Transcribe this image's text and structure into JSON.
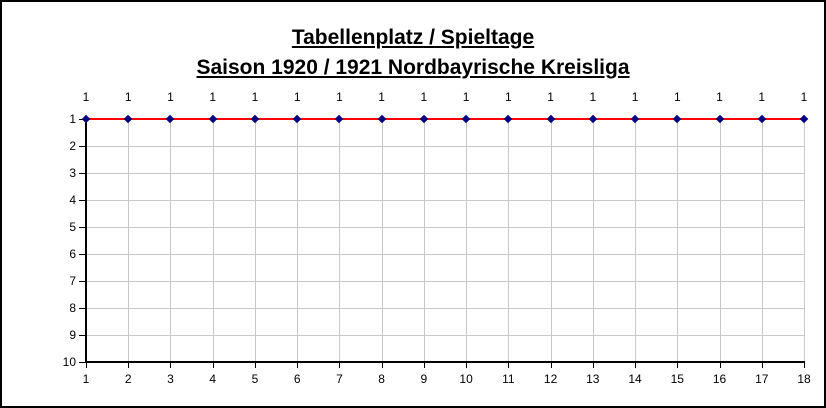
{
  "title": {
    "line1": "Tabellenplatz / Spieltage",
    "line2": "Saison 1920 / 1921 Nordbayrische Kreisliga"
  },
  "chart_data": {
    "type": "line",
    "title": "Tabellenplatz / Spieltage",
    "subtitle": "Saison 1920 / 1921 Nordbayrische Kreisliga",
    "x": [
      1,
      2,
      3,
      4,
      5,
      6,
      7,
      8,
      9,
      10,
      11,
      12,
      13,
      14,
      15,
      16,
      17,
      18
    ],
    "values": [
      1,
      1,
      1,
      1,
      1,
      1,
      1,
      1,
      1,
      1,
      1,
      1,
      1,
      1,
      1,
      1,
      1,
      1
    ],
    "data_labels": [
      "1",
      "1",
      "1",
      "1",
      "1",
      "1",
      "1",
      "1",
      "1",
      "1",
      "1",
      "1",
      "1",
      "1",
      "1",
      "1",
      "1",
      "1"
    ],
    "xticks": [
      "1",
      "2",
      "3",
      "4",
      "5",
      "6",
      "7",
      "8",
      "9",
      "10",
      "11",
      "12",
      "13",
      "14",
      "15",
      "16",
      "17",
      "18"
    ],
    "yticks": [
      "1",
      "2",
      "3",
      "4",
      "5",
      "6",
      "7",
      "8",
      "9",
      "10"
    ],
    "xlabel": "",
    "ylabel": "",
    "xlim": [
      1,
      18
    ],
    "ylim": [
      1,
      10
    ],
    "y_axis_inverted": true,
    "grid": true,
    "legend": "none",
    "colors": {
      "line": "#ff0000",
      "marker": "#000080",
      "gridline": "#c8c8c8",
      "axis": "#000000",
      "text": "#000000",
      "background": "#ffffff",
      "frame_border": "#000000"
    }
  }
}
